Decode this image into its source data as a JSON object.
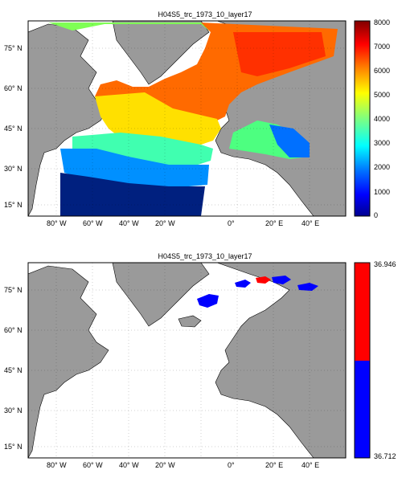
{
  "panels": [
    {
      "title": "H04S5_trc_1973_10_layer17",
      "colorbar_ticks": [
        "8000",
        "7000",
        "6000",
        "5000",
        "4000",
        "3000",
        "2000",
        "1000",
        "0"
      ],
      "colorbar_range": [
        0,
        8000
      ],
      "colorbar_type": "jet"
    },
    {
      "title": "H04S5_trc_1973_10_layer17",
      "colorbar_ticks": [
        "36.946",
        "36.712"
      ],
      "colorbar_range": [
        36.712,
        36.946
      ],
      "colorbar_type": "red-blue"
    }
  ],
  "lat_labels": [
    "75° N",
    "60° N",
    "45° N",
    "30° N",
    "15° N"
  ],
  "lon_labels": [
    "80° W",
    "60° W",
    "40° W",
    "20° W",
    "0°",
    "20° E",
    "40° E"
  ],
  "colors": {
    "land": "#9a9a9a",
    "ocean": "#ffffff",
    "red": "#ff0000",
    "blue": "#0000ff"
  }
}
